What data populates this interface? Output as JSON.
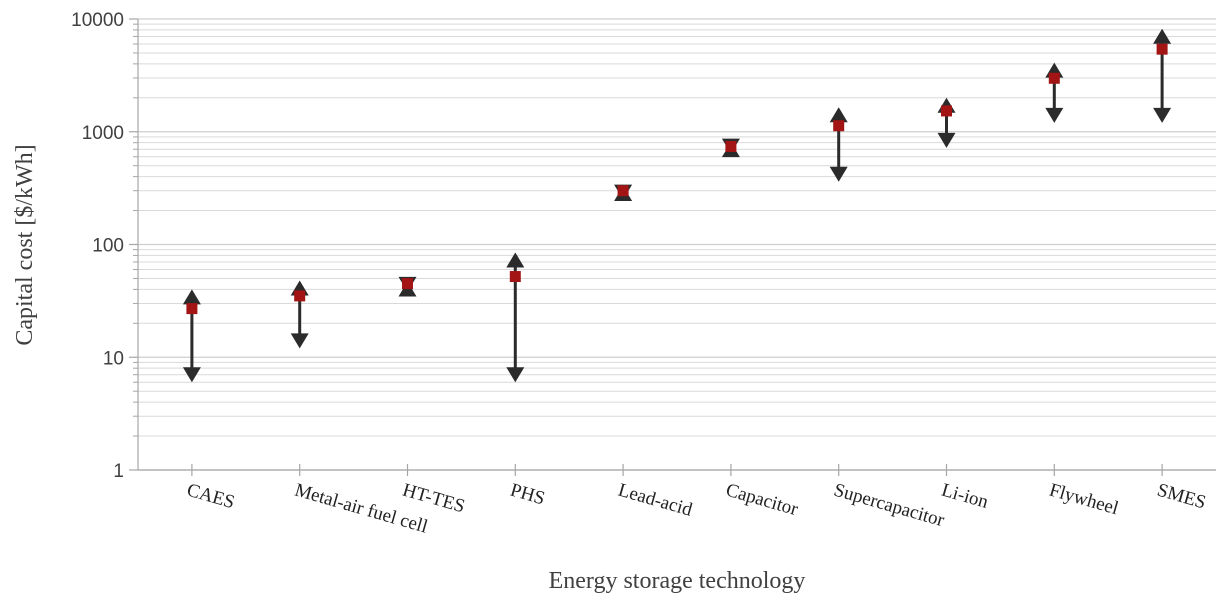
{
  "chart_data": {
    "type": "scatter",
    "xlabel": "Energy storage technology",
    "ylabel": "Capital cost [$/kWh]",
    "yscale": "log",
    "ylim": [
      1,
      10000
    ],
    "yticks": [
      "1",
      "10",
      "100",
      "1000",
      "10000"
    ],
    "grid": true,
    "legend": "none",
    "categories": [
      "CAES",
      "Metal-air fuel cell",
      "HT-TES",
      "PHS",
      "Lead-acid",
      "Capacitor",
      "Supercapacitor",
      "Li-ion",
      "Flywheel",
      "SMES"
    ],
    "series": [
      {
        "values": [
          27,
          35,
          45,
          52,
          300,
          740,
          1130,
          1530,
          2980,
          5400
        ]
      },
      {
        "values": [
          40,
          48,
          47,
          85,
          330,
          810,
          1650,
          2000,
          4100,
          8200
        ]
      },
      {
        "values": [
          6,
          12,
          38,
          6,
          250,
          640,
          360,
          720,
          1200,
          1200
        ]
      }
    ],
    "colors": {
      "marker": "#a31515",
      "range": "#2b2b2b",
      "grid": "#d9d9d9",
      "axis": "#a6a6a6"
    }
  }
}
